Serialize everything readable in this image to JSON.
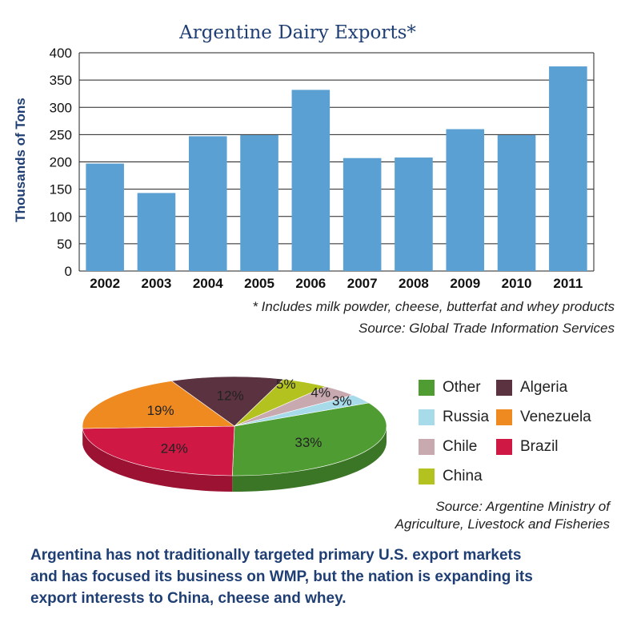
{
  "chart_data": [
    {
      "type": "bar",
      "title": "Argentine Dairy Exports*",
      "ylabel": "Thousands of Tons",
      "xlabel": "",
      "categories": [
        "2002",
        "2003",
        "2004",
        "2005",
        "2006",
        "2007",
        "2008",
        "2009",
        "2010",
        "2011"
      ],
      "values": [
        197,
        143,
        247,
        249,
        332,
        207,
        208,
        260,
        249,
        375
      ],
      "ylim": [
        0,
        400
      ],
      "yticks": [
        0,
        50,
        100,
        150,
        200,
        250,
        300,
        350,
        400
      ],
      "grid": true,
      "bar_color": "#5aa0d2",
      "footnote": "* Includes milk powder, cheese, butterfat and whey products",
      "source": "Source: Global Trade Information Services"
    },
    {
      "type": "pie",
      "slices": [
        {
          "name": "Other",
          "value": 33,
          "label": "33%",
          "color": "#4f9c33"
        },
        {
          "name": "Brazil",
          "value": 24,
          "label": "24%",
          "color": "#cf1844"
        },
        {
          "name": "Venezuela",
          "value": 19,
          "label": "19%",
          "color": "#ee8a1f"
        },
        {
          "name": "Algeria",
          "value": 12,
          "label": "12%",
          "color": "#5a3240"
        },
        {
          "name": "China",
          "value": 5,
          "label": "5%",
          "color": "#b3c21f"
        },
        {
          "name": "Chile",
          "value": 4,
          "label": "4%",
          "color": "#c8a9b0"
        },
        {
          "name": "Russia",
          "value": 3,
          "label": "3%",
          "color": "#a7dbea"
        }
      ],
      "legend": {
        "placement": "right",
        "items": [
          {
            "name": "Other",
            "color": "#4f9c33"
          },
          {
            "name": "Algeria",
            "color": "#5a3240"
          },
          {
            "name": "Russia",
            "color": "#a7dbea"
          },
          {
            "name": "Venezuela",
            "color": "#ee8a1f"
          },
          {
            "name": "Chile",
            "color": "#c8a9b0"
          },
          {
            "name": "Brazil",
            "color": "#cf1844"
          },
          {
            "name": "China",
            "color": "#b3c21f"
          }
        ]
      },
      "source_line1": "Source: Argentine Ministry of",
      "source_line2": "Agriculture, Livestock and Fisheries"
    }
  ],
  "caption": {
    "line1": "Argentina has not traditionally targeted primary U.S. export markets",
    "line2": "and has focused its business on WMP, but the nation is expanding its",
    "line3": "export interests to China, cheese and whey."
  }
}
